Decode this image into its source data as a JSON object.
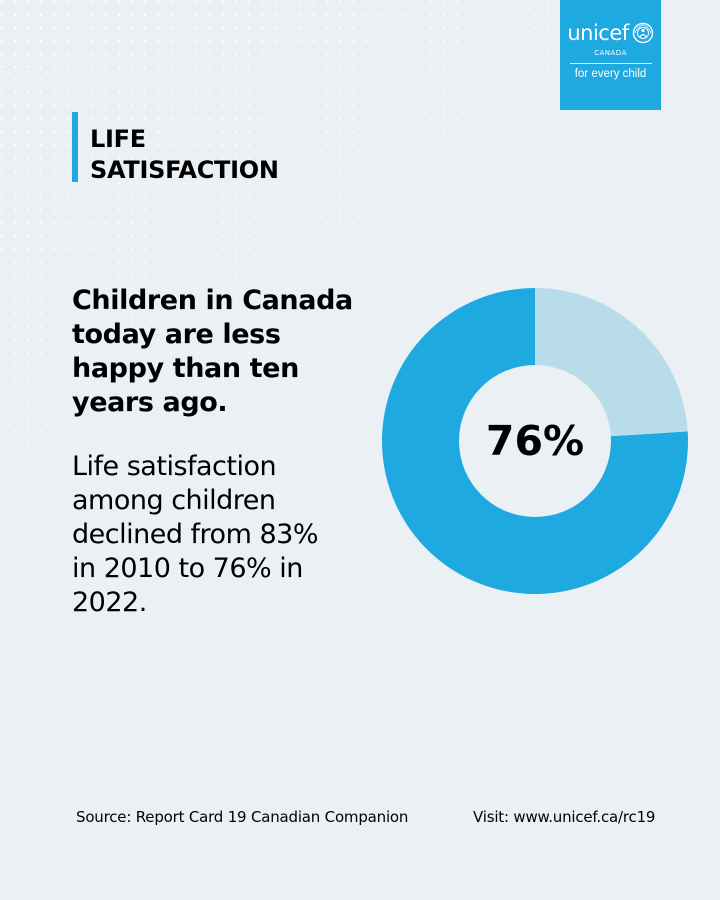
{
  "brand": {
    "name": "unicef",
    "country": "CANADA",
    "tagline": "for every child",
    "color": "#1ea9e1"
  },
  "section": {
    "title_lines": [
      "LIFE",
      "SATISFACTION"
    ],
    "accent_color": "#1ea9e1"
  },
  "headline": {
    "lines": [
      "Children in Canada",
      "today are less",
      "happy than ten",
      "years ago."
    ]
  },
  "body": {
    "lines": [
      "Life satisfaction",
      "among children",
      "declined from 83%",
      "in 2010 to 76% in",
      "2022."
    ]
  },
  "chart_data": {
    "type": "pie",
    "donut": true,
    "center_label": "76%",
    "slices": [
      {
        "value": 76,
        "color": "#1ea9e1"
      },
      {
        "value": 24,
        "color": "#b9dcea"
      }
    ]
  },
  "footer": {
    "source": "Source: Report Card 19 Canadian Companion",
    "visit": "Visit: www.unicef.ca/rc19"
  }
}
